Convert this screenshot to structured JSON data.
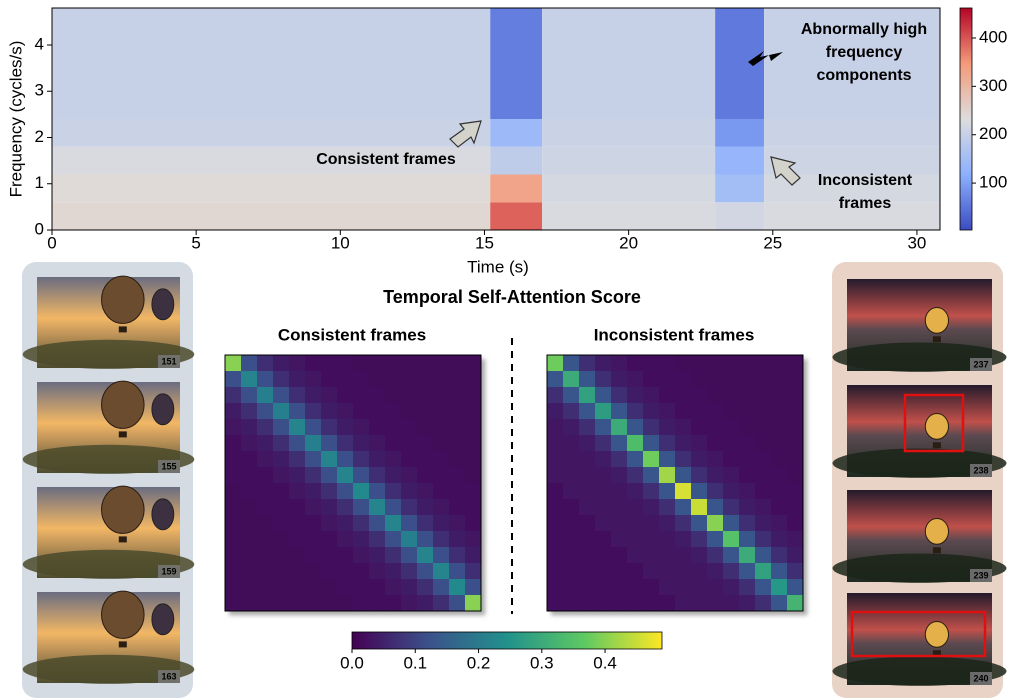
{
  "figure_title": "Temporal Self-Attention Score",
  "frames_left": [
    "151",
    "155",
    "159",
    "163"
  ],
  "frames_right": [
    "237",
    "238",
    "239",
    "240"
  ],
  "chart_data": [
    {
      "type": "heatmap",
      "colormap": "coolwarm",
      "xlabel": "Time (s)",
      "ylabel": "Frequency (cycles/s)",
      "x_bins": [
        0,
        15.2,
        17,
        23,
        24.7,
        30.8
      ],
      "y_bins": [
        0,
        0.6,
        1.2,
        1.8,
        2.4,
        4.8
      ],
      "values": [
        [
          245,
          390,
          225,
          215,
          225
        ],
        [
          240,
          330,
          220,
          150,
          220
        ],
        [
          225,
          190,
          210,
          130,
          210
        ],
        [
          205,
          140,
          205,
          90,
          205
        ],
        [
          200,
          60,
          200,
          55,
          200
        ]
      ],
      "xlim": [
        0,
        30.8
      ],
      "ylim": [
        0,
        4.8
      ],
      "xticks": [
        0,
        5,
        10,
        15,
        20,
        25,
        30
      ],
      "yticks": [
        0,
        1,
        2,
        3,
        4
      ],
      "clim": [
        3,
        462
      ],
      "cticks": [
        100,
        200,
        300,
        400
      ],
      "annotations": [
        {
          "lines": [
            "Abnormally high",
            "frequency",
            "components"
          ],
          "color": "#c00000"
        },
        {
          "lines": [
            "Consistent frames"
          ],
          "color": "#5b9bd5"
        },
        {
          "lines": [
            "Inconsistent",
            "frames"
          ],
          "color": "#e0a584"
        }
      ]
    },
    {
      "type": "matrix",
      "colormap": "viridis",
      "title": "Consistent frames",
      "title_color": "#5b9bd5",
      "clim": [
        0,
        0.49
      ],
      "cticks": [
        {
          "value": 0,
          "label": "0.0"
        },
        0.1,
        0.2,
        0.3,
        0.4
      ],
      "values": [
        [
          0.4,
          0.12,
          0.07,
          0.04,
          0.03,
          0.02,
          0.02,
          0.02,
          0.01,
          0.01,
          0.01,
          0.01,
          0.01,
          0.01,
          0.01,
          0.01
        ],
        [
          0.12,
          0.22,
          0.12,
          0.07,
          0.04,
          0.03,
          0.02,
          0.02,
          0.02,
          0.01,
          0.01,
          0.01,
          0.01,
          0.01,
          0.01,
          0.01
        ],
        [
          0.07,
          0.12,
          0.21,
          0.12,
          0.07,
          0.04,
          0.03,
          0.02,
          0.02,
          0.02,
          0.01,
          0.01,
          0.01,
          0.01,
          0.01,
          0.01
        ],
        [
          0.04,
          0.07,
          0.12,
          0.21,
          0.12,
          0.07,
          0.04,
          0.03,
          0.02,
          0.02,
          0.02,
          0.01,
          0.01,
          0.01,
          0.01,
          0.01
        ],
        [
          0.03,
          0.04,
          0.07,
          0.12,
          0.22,
          0.12,
          0.07,
          0.04,
          0.03,
          0.02,
          0.02,
          0.02,
          0.01,
          0.01,
          0.01,
          0.01
        ],
        [
          0.02,
          0.03,
          0.04,
          0.07,
          0.12,
          0.21,
          0.12,
          0.07,
          0.04,
          0.03,
          0.02,
          0.02,
          0.02,
          0.01,
          0.01,
          0.01
        ],
        [
          0.02,
          0.02,
          0.03,
          0.04,
          0.07,
          0.12,
          0.22,
          0.12,
          0.07,
          0.04,
          0.03,
          0.02,
          0.02,
          0.02,
          0.01,
          0.01
        ],
        [
          0.02,
          0.02,
          0.02,
          0.03,
          0.04,
          0.07,
          0.12,
          0.22,
          0.12,
          0.07,
          0.04,
          0.03,
          0.02,
          0.02,
          0.02,
          0.01
        ],
        [
          0.01,
          0.02,
          0.02,
          0.02,
          0.03,
          0.04,
          0.07,
          0.12,
          0.23,
          0.12,
          0.07,
          0.04,
          0.03,
          0.02,
          0.02,
          0.02
        ],
        [
          0.01,
          0.01,
          0.02,
          0.02,
          0.02,
          0.03,
          0.04,
          0.07,
          0.12,
          0.22,
          0.12,
          0.07,
          0.04,
          0.03,
          0.02,
          0.02
        ],
        [
          0.01,
          0.01,
          0.01,
          0.02,
          0.02,
          0.02,
          0.03,
          0.04,
          0.07,
          0.12,
          0.22,
          0.12,
          0.07,
          0.04,
          0.03,
          0.02
        ],
        [
          0.01,
          0.01,
          0.01,
          0.01,
          0.02,
          0.02,
          0.02,
          0.03,
          0.04,
          0.07,
          0.12,
          0.21,
          0.12,
          0.07,
          0.04,
          0.03
        ],
        [
          0.01,
          0.01,
          0.01,
          0.01,
          0.01,
          0.02,
          0.02,
          0.02,
          0.03,
          0.04,
          0.07,
          0.12,
          0.22,
          0.12,
          0.07,
          0.04
        ],
        [
          0.01,
          0.01,
          0.01,
          0.01,
          0.01,
          0.01,
          0.02,
          0.02,
          0.02,
          0.03,
          0.04,
          0.07,
          0.12,
          0.22,
          0.12,
          0.07
        ],
        [
          0.01,
          0.01,
          0.01,
          0.01,
          0.01,
          0.01,
          0.01,
          0.02,
          0.02,
          0.02,
          0.03,
          0.04,
          0.07,
          0.12,
          0.23,
          0.12
        ],
        [
          0.01,
          0.01,
          0.01,
          0.01,
          0.01,
          0.01,
          0.01,
          0.01,
          0.02,
          0.02,
          0.02,
          0.03,
          0.04,
          0.07,
          0.12,
          0.4
        ]
      ]
    },
    {
      "type": "matrix",
      "colormap": "viridis",
      "title": "Inconsistent frames",
      "title_color": "#e0a584",
      "clim": [
        0,
        0.49
      ],
      "values": [
        [
          0.38,
          0.13,
          0.07,
          0.04,
          0.03,
          0.02,
          0.02,
          0.02,
          0.01,
          0.01,
          0.01,
          0.01,
          0.01,
          0.01,
          0.01,
          0.01
        ],
        [
          0.13,
          0.3,
          0.13,
          0.07,
          0.04,
          0.03,
          0.02,
          0.02,
          0.02,
          0.01,
          0.01,
          0.01,
          0.01,
          0.01,
          0.01,
          0.01
        ],
        [
          0.07,
          0.13,
          0.28,
          0.13,
          0.07,
          0.04,
          0.03,
          0.02,
          0.02,
          0.02,
          0.01,
          0.01,
          0.01,
          0.01,
          0.01,
          0.01
        ],
        [
          0.04,
          0.07,
          0.13,
          0.27,
          0.13,
          0.07,
          0.04,
          0.03,
          0.02,
          0.02,
          0.02,
          0.01,
          0.01,
          0.01,
          0.01,
          0.01
        ],
        [
          0.03,
          0.04,
          0.07,
          0.13,
          0.3,
          0.13,
          0.07,
          0.04,
          0.03,
          0.02,
          0.02,
          0.02,
          0.01,
          0.01,
          0.01,
          0.01
        ],
        [
          0.03,
          0.03,
          0.04,
          0.07,
          0.13,
          0.34,
          0.13,
          0.07,
          0.04,
          0.03,
          0.02,
          0.02,
          0.02,
          0.01,
          0.01,
          0.01
        ],
        [
          0.03,
          0.03,
          0.03,
          0.04,
          0.07,
          0.13,
          0.38,
          0.13,
          0.07,
          0.04,
          0.03,
          0.02,
          0.02,
          0.02,
          0.01,
          0.01
        ],
        [
          0.03,
          0.03,
          0.03,
          0.03,
          0.04,
          0.07,
          0.13,
          0.42,
          0.13,
          0.07,
          0.04,
          0.03,
          0.02,
          0.02,
          0.02,
          0.01
        ],
        [
          0.02,
          0.03,
          0.03,
          0.03,
          0.03,
          0.04,
          0.07,
          0.13,
          0.46,
          0.13,
          0.07,
          0.04,
          0.03,
          0.02,
          0.02,
          0.02
        ],
        [
          0.02,
          0.02,
          0.03,
          0.03,
          0.03,
          0.03,
          0.04,
          0.07,
          0.13,
          0.45,
          0.13,
          0.07,
          0.04,
          0.03,
          0.02,
          0.02
        ],
        [
          0.02,
          0.02,
          0.02,
          0.03,
          0.03,
          0.03,
          0.03,
          0.04,
          0.07,
          0.13,
          0.4,
          0.13,
          0.07,
          0.04,
          0.03,
          0.02
        ],
        [
          0.02,
          0.02,
          0.02,
          0.02,
          0.03,
          0.03,
          0.03,
          0.03,
          0.04,
          0.07,
          0.13,
          0.35,
          0.13,
          0.07,
          0.04,
          0.03
        ],
        [
          0.02,
          0.02,
          0.02,
          0.02,
          0.02,
          0.03,
          0.03,
          0.03,
          0.03,
          0.04,
          0.07,
          0.13,
          0.3,
          0.13,
          0.07,
          0.04
        ],
        [
          0.02,
          0.02,
          0.02,
          0.02,
          0.02,
          0.02,
          0.03,
          0.03,
          0.03,
          0.03,
          0.04,
          0.07,
          0.13,
          0.28,
          0.13,
          0.07
        ],
        [
          0.02,
          0.02,
          0.02,
          0.02,
          0.02,
          0.02,
          0.02,
          0.03,
          0.03,
          0.03,
          0.03,
          0.04,
          0.07,
          0.13,
          0.26,
          0.13
        ],
        [
          0.02,
          0.02,
          0.02,
          0.02,
          0.02,
          0.02,
          0.02,
          0.02,
          0.03,
          0.03,
          0.03,
          0.03,
          0.04,
          0.07,
          0.13,
          0.32
        ]
      ]
    }
  ]
}
